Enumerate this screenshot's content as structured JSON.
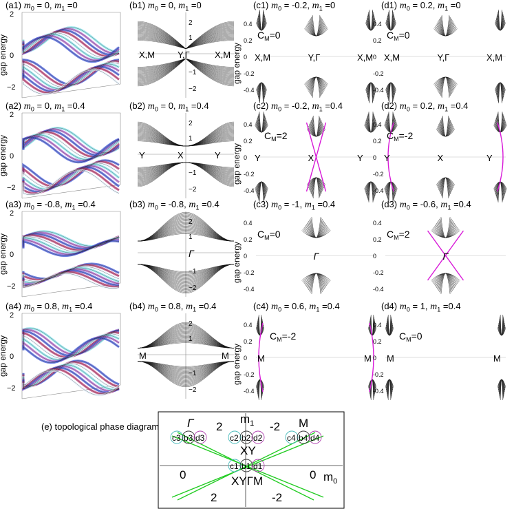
{
  "rows": [
    {
      "a": {
        "tag": "(a1)",
        "m0": "0",
        "m1": "0"
      },
      "b": {
        "tag": "(b1)",
        "m0": "0",
        "m1": "0",
        "points": [
          "X,M",
          "Y,Γ",
          "X,M"
        ],
        "ticks": [
          "2",
          "1",
          "0",
          "−1",
          "−2"
        ]
      },
      "c": {
        "tag": "(c1)",
        "m0": "-0.2",
        "m1": "0",
        "cm": "C",
        "cmsub": "M",
        "cmval": "=0",
        "points": [
          "X,M",
          "Y,Γ",
          "X,M"
        ]
      },
      "d": {
        "tag": "(d1)",
        "m0": "0.2",
        "m1": "0",
        "cm": "C",
        "cmsub": "M",
        "cmval": "=0",
        "points": [
          "X,M",
          "Y,Γ",
          "X,M"
        ]
      }
    },
    {
      "a": {
        "tag": "(a2)",
        "m0": "0",
        "m1": "0.4"
      },
      "b": {
        "tag": "(b2)",
        "m0": "0",
        "m1": "0.4",
        "points": [
          "Y",
          "X",
          "Y"
        ],
        "ticks": [
          "2",
          "1",
          "0",
          "−1",
          "−2"
        ]
      },
      "c": {
        "tag": "(c2)",
        "m0": "-0.2",
        "m1": "0.4",
        "cm": "C",
        "cmsub": "M",
        "cmval": "=2",
        "points": [
          "Y",
          "X",
          "Y"
        ]
      },
      "d": {
        "tag": "(d2)",
        "m0": "0.2",
        "m1": "0.4",
        "cm": "C",
        "cmsub": "M",
        "cmval": "=-2",
        "points": [
          "Y",
          "X",
          "Y"
        ]
      }
    },
    {
      "a": {
        "tag": "(a3)",
        "m0": "-0.8",
        "m1": "0.4"
      },
      "b": {
        "tag": "(b3)",
        "m0": "-0.8",
        "m1": "0.4",
        "points": [
          "Γ"
        ],
        "ticks": [
          "2",
          "1",
          "0",
          "−1",
          "−2"
        ]
      },
      "c": {
        "tag": "(c3)",
        "m0": "-1",
        "m1": "0.4",
        "cm": "C",
        "cmsub": "M",
        "cmval": "=0",
        "points": [
          "Γ"
        ]
      },
      "d": {
        "tag": "(d3)",
        "m0": "-0.6",
        "m1": "0.4",
        "cm": "C",
        "cmsub": "M",
        "cmval": "=2",
        "points": [
          "Γ"
        ]
      }
    },
    {
      "a": {
        "tag": "(a4)",
        "m0": "0.8",
        "m1": "0.4"
      },
      "b": {
        "tag": "(b4)",
        "m0": "0.8",
        "m1": "0.4",
        "points": [
          "M",
          "M"
        ],
        "ticks": [
          "2",
          "1",
          "0",
          "−1",
          "−2"
        ]
      },
      "c": {
        "tag": "(c4)",
        "m0": "0.6",
        "m1": "0.4",
        "cm": "C",
        "cmsub": "M",
        "cmval": "=-2",
        "points": [
          "M",
          "M"
        ]
      },
      "d": {
        "tag": "(d4)",
        "m0": "1",
        "m1": "0.4",
        "cm": "C",
        "cmsub": "M",
        "cmval": "=0",
        "points": [
          "M",
          "M"
        ]
      }
    }
  ],
  "gap_axis_label": "gap energy",
  "a_ticks": [
    "2",
    "0",
    "−2"
  ],
  "c_ticks": [
    "0.4",
    "0.2",
    "0",
    "-0.2",
    "-0.4"
  ],
  "phase_diagram": {
    "caption": "(e) topological phase diagram",
    "axis_y": "m",
    "axis_y_sub": "1",
    "axis_x": "m",
    "axis_x_sub": "0",
    "gamma": "Γ",
    "m_label": "M",
    "xy_label": "XY",
    "xyg_label": "XYΓM",
    "chern_values": [
      "2",
      "-2",
      "0",
      "0",
      "2",
      "-2"
    ],
    "circles_left": [
      "c3",
      "b3",
      "d3"
    ],
    "circles_mid": [
      "c2",
      "b2",
      "d2"
    ],
    "circles_right": [
      "c4",
      "b4",
      "d4"
    ],
    "circles_center": [
      "c1",
      "b1",
      "d1"
    ]
  },
  "colors": {
    "edge": "#d81bd8",
    "line": "#22cc22",
    "c_circle": "#45b9b9",
    "d_circle": "#b040b0"
  }
}
